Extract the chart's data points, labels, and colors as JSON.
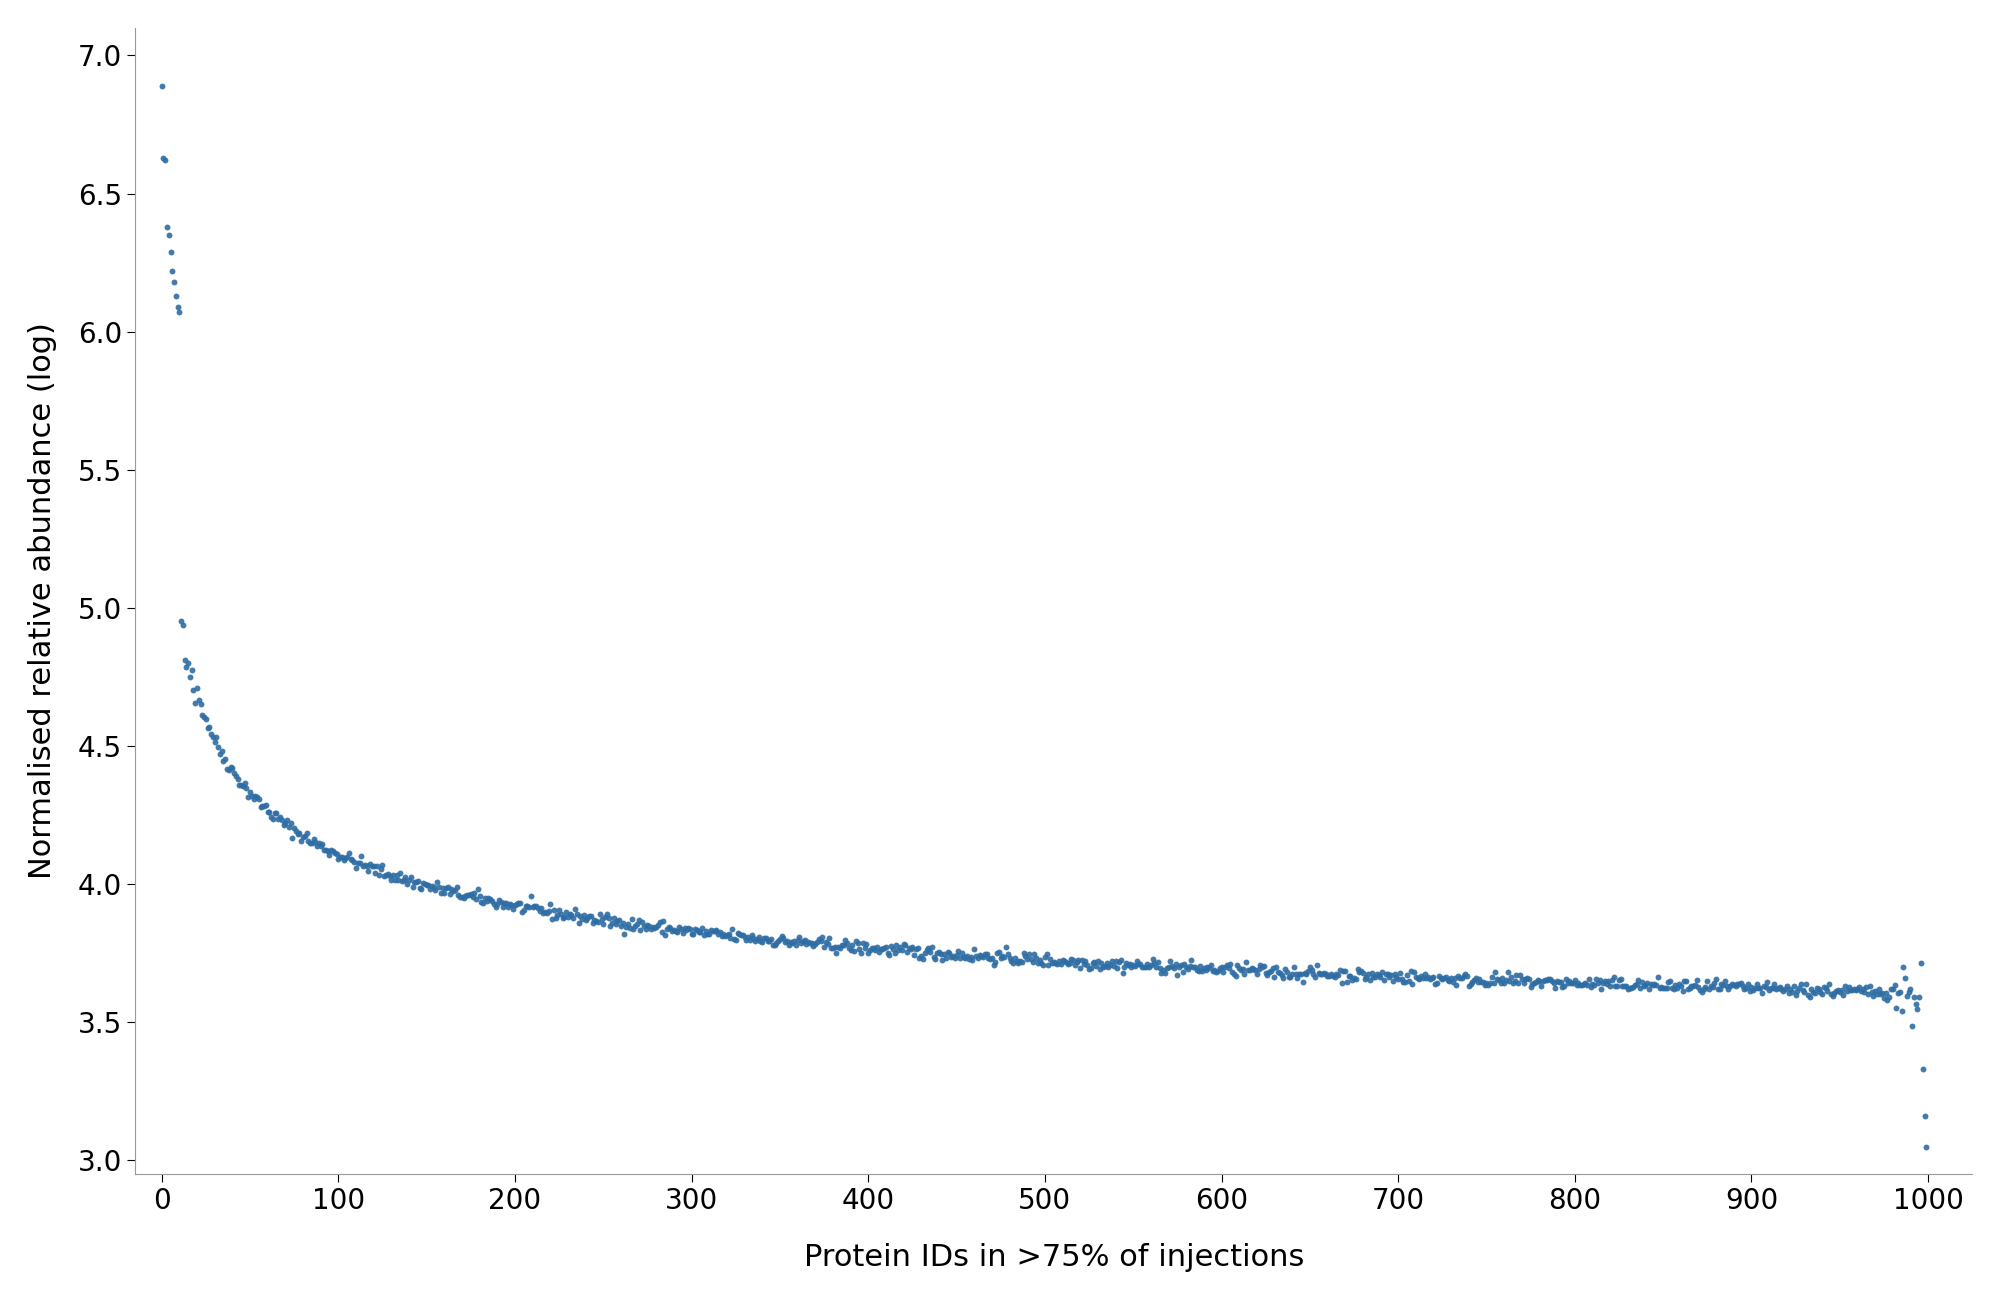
{
  "title": "",
  "xlabel": "Protein IDs in >75% of injections",
  "ylabel": "Normalised relative abundance (log)",
  "xlim": [
    -15,
    1025
  ],
  "ylim": [
    2.95,
    7.1
  ],
  "dot_color": "#2e6da4",
  "dot_size": 18,
  "background_color": "#ffffff",
  "xlabel_fontsize": 22,
  "ylabel_fontsize": 22,
  "tick_fontsize": 20,
  "xticks": [
    0,
    100,
    200,
    300,
    400,
    500,
    600,
    700,
    800,
    900,
    1000
  ],
  "yticks": [
    3.0,
    3.5,
    4.0,
    4.5,
    5.0,
    5.5,
    6.0,
    6.5,
    7.0
  ],
  "n_points": 1000
}
